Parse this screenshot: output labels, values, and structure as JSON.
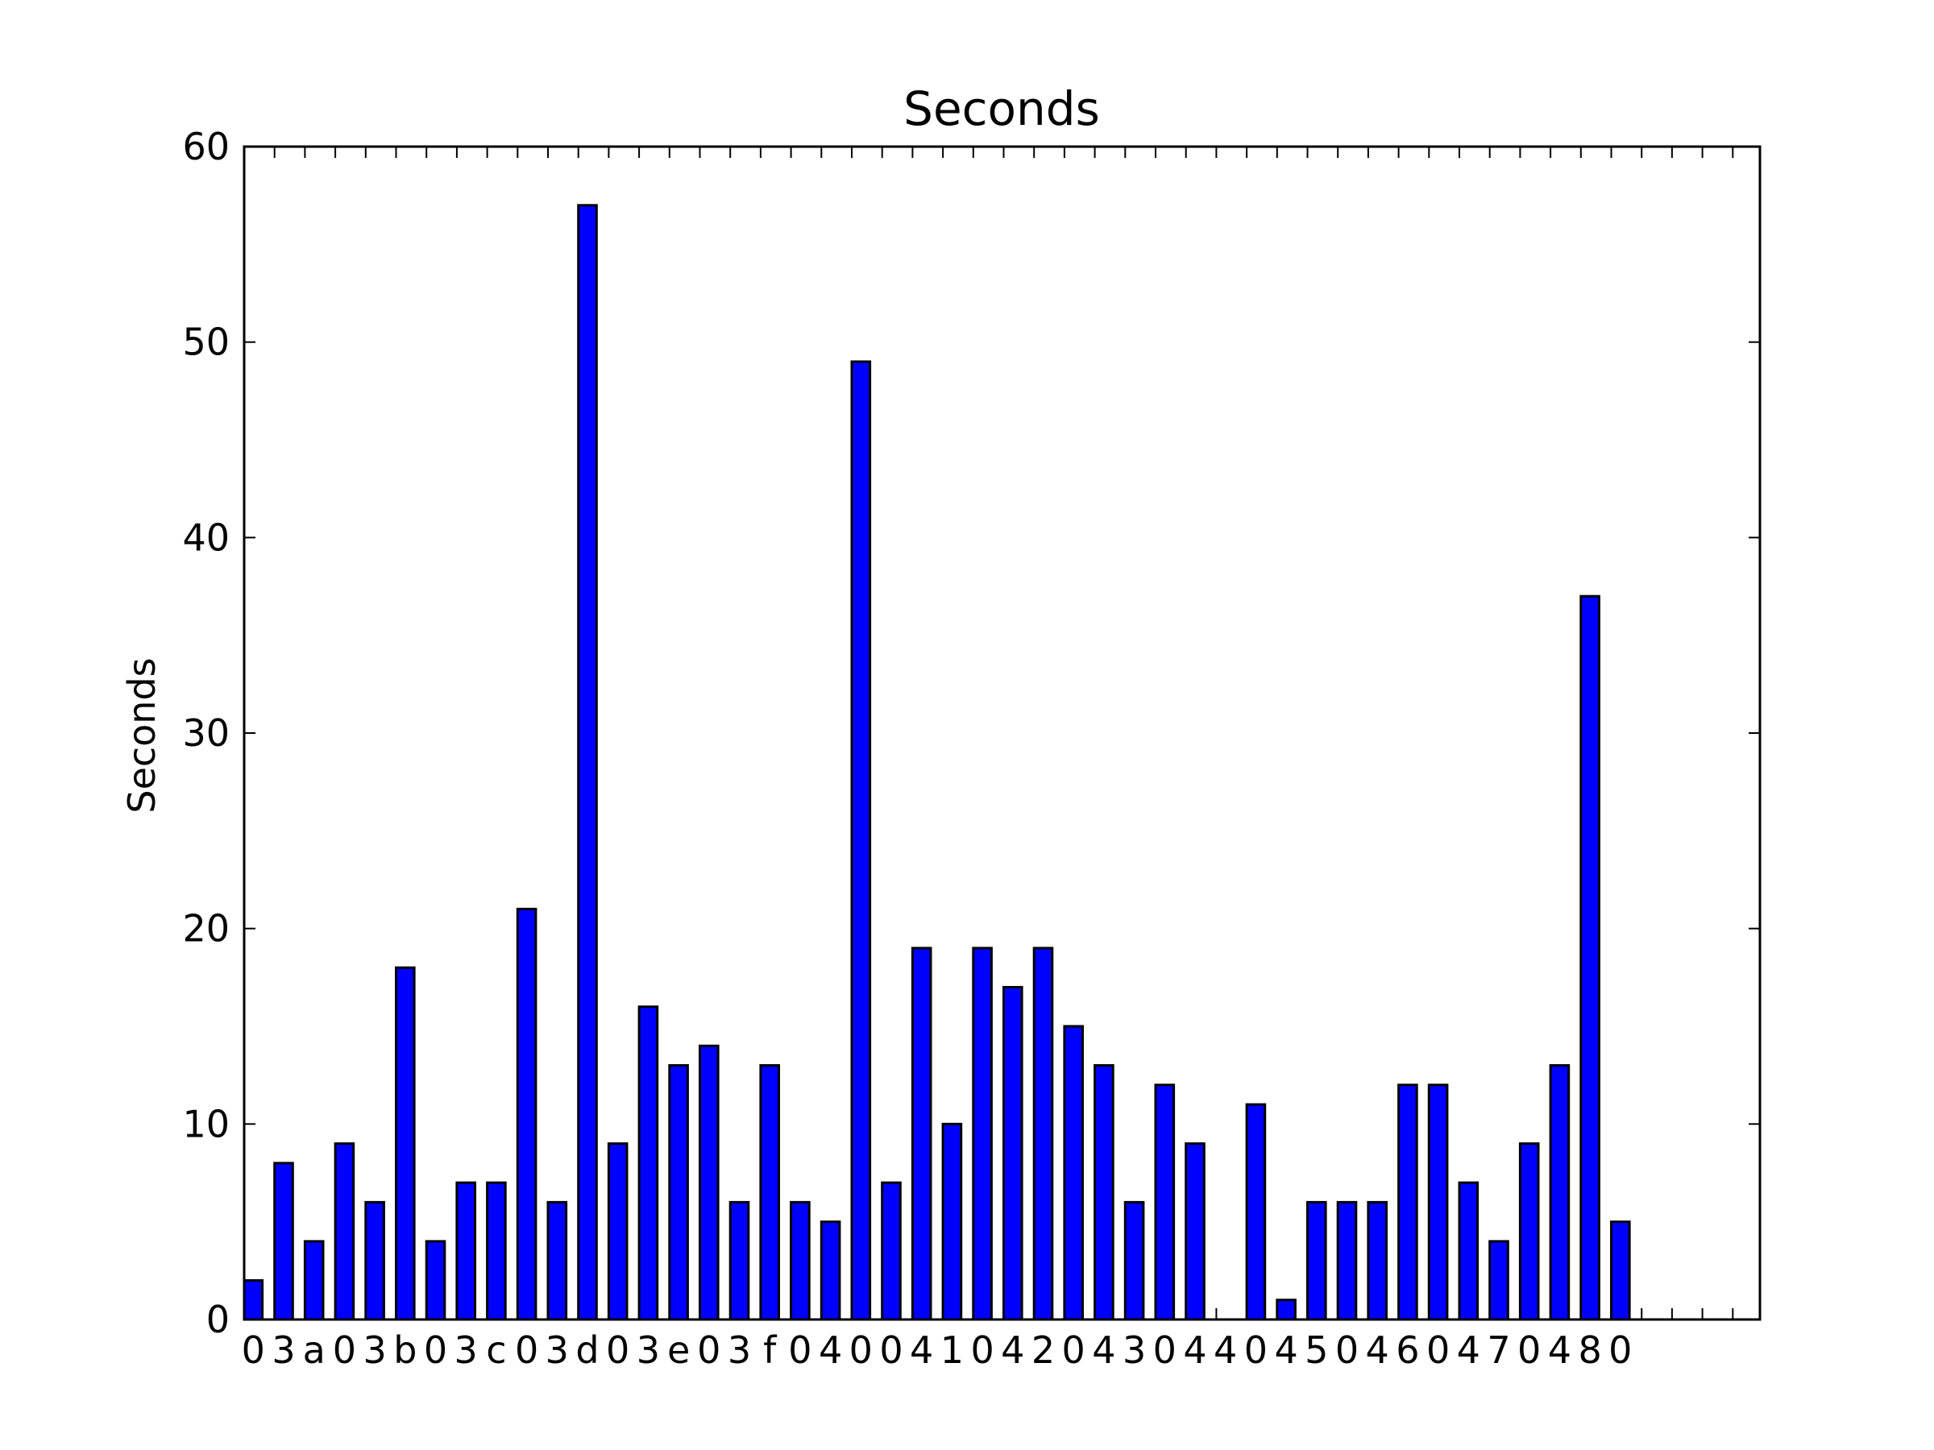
{
  "chart_data": {
    "type": "bar",
    "title": "Seconds",
    "xlabel": "",
    "ylabel": "Seconds",
    "ylim": [
      0,
      60
    ],
    "yticks": [
      0,
      10,
      20,
      30,
      40,
      50,
      60
    ],
    "bar_color": "#0000ff",
    "edge_color": "#000000",
    "grid": false,
    "values": [
      2,
      8,
      4,
      9,
      6,
      18,
      4,
      7,
      7,
      21,
      6,
      57,
      9,
      16,
      13,
      14,
      6,
      13,
      6,
      5,
      49,
      7,
      19,
      10,
      19,
      17,
      19,
      15,
      13,
      6,
      12,
      9,
      0,
      11,
      1,
      6,
      6,
      6,
      12,
      12,
      7,
      4,
      9,
      13,
      37,
      5
    ],
    "tick_chars": [
      "0",
      "3",
      "a",
      "0",
      "3",
      "b",
      "0",
      "3",
      "c",
      "0",
      "3",
      "d",
      "0",
      "3",
      "e",
      "0",
      "3",
      "f",
      "0",
      "4",
      "0",
      "0",
      "4",
      "1",
      "0",
      "4",
      "2",
      "0",
      "4",
      "3",
      "0",
      "4",
      "4",
      "0",
      "4",
      "5",
      "0",
      "4",
      "6",
      "0",
      "4",
      "7",
      "0",
      "4",
      "8",
      "0"
    ]
  }
}
